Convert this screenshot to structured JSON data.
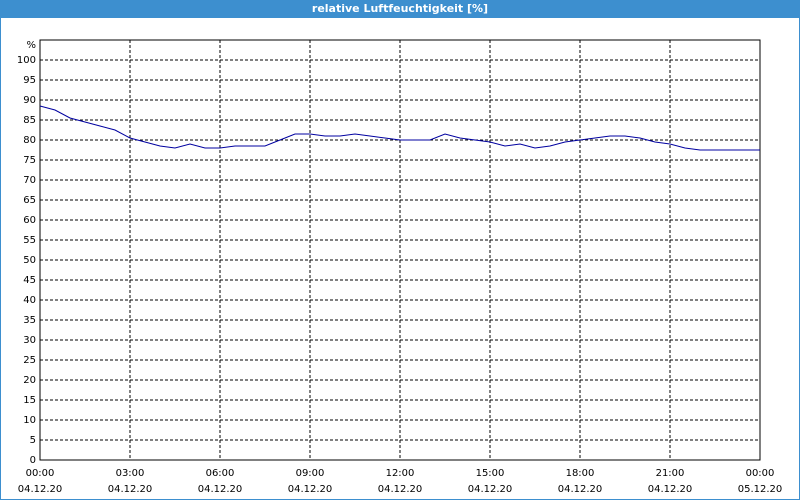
{
  "chart_data": {
    "type": "line",
    "title": "relative Luftfeuchtigkeit [%]",
    "y_unit": "%",
    "x": [
      0,
      0.5,
      1,
      1.5,
      2,
      2.5,
      3,
      3.5,
      4,
      4.5,
      5,
      5.5,
      6,
      6.5,
      7,
      7.5,
      8,
      8.5,
      9,
      9.5,
      10,
      10.5,
      11,
      11.5,
      12,
      12.5,
      13,
      13.5,
      14,
      14.5,
      15,
      15.5,
      16,
      16.5,
      17,
      17.5,
      18,
      18.5,
      19,
      19.5,
      20,
      20.5,
      21,
      21.5,
      22,
      22.5,
      23,
      23.5,
      24
    ],
    "series": [
      {
        "color": "#0000a0",
        "values": [
          88.5,
          87.5,
          85.5,
          84.5,
          83.5,
          82.5,
          80.5,
          79.5,
          78.5,
          78,
          79,
          78,
          78,
          78.5,
          78.5,
          78.5,
          80,
          81.5,
          81.5,
          81,
          81,
          81.5,
          81,
          80.5,
          80,
          80,
          80,
          81.5,
          80.5,
          80,
          79.5,
          78.5,
          79,
          78,
          78.5,
          79.5,
          80,
          80.5,
          81,
          81,
          80.5,
          79.5,
          79,
          78,
          77.5,
          77.5,
          77.5,
          77.5,
          77.5
        ]
      }
    ],
    "xlim": [
      0,
      24
    ],
    "ylim": [
      0,
      105
    ],
    "xticks": [
      {
        "value": 0,
        "label": "00:00"
      },
      {
        "value": 3,
        "label": "03:00"
      },
      {
        "value": 6,
        "label": "06:00"
      },
      {
        "value": 9,
        "label": "09:00"
      },
      {
        "value": 12,
        "label": "12:00"
      },
      {
        "value": 15,
        "label": "15:00"
      },
      {
        "value": 18,
        "label": "18:00"
      },
      {
        "value": 21,
        "label": "21:00"
      },
      {
        "value": 24,
        "label": "00:00"
      }
    ],
    "xtick_dates": [
      "04.12.20",
      "04.12.20",
      "04.12.20",
      "04.12.20",
      "04.12.20",
      "04.12.20",
      "04.12.20",
      "04.12.20",
      "05.12.20"
    ],
    "yticks": [
      0,
      5,
      10,
      15,
      20,
      25,
      30,
      35,
      40,
      45,
      50,
      55,
      60,
      65,
      70,
      75,
      80,
      85,
      90,
      95,
      100
    ],
    "grid": true
  }
}
